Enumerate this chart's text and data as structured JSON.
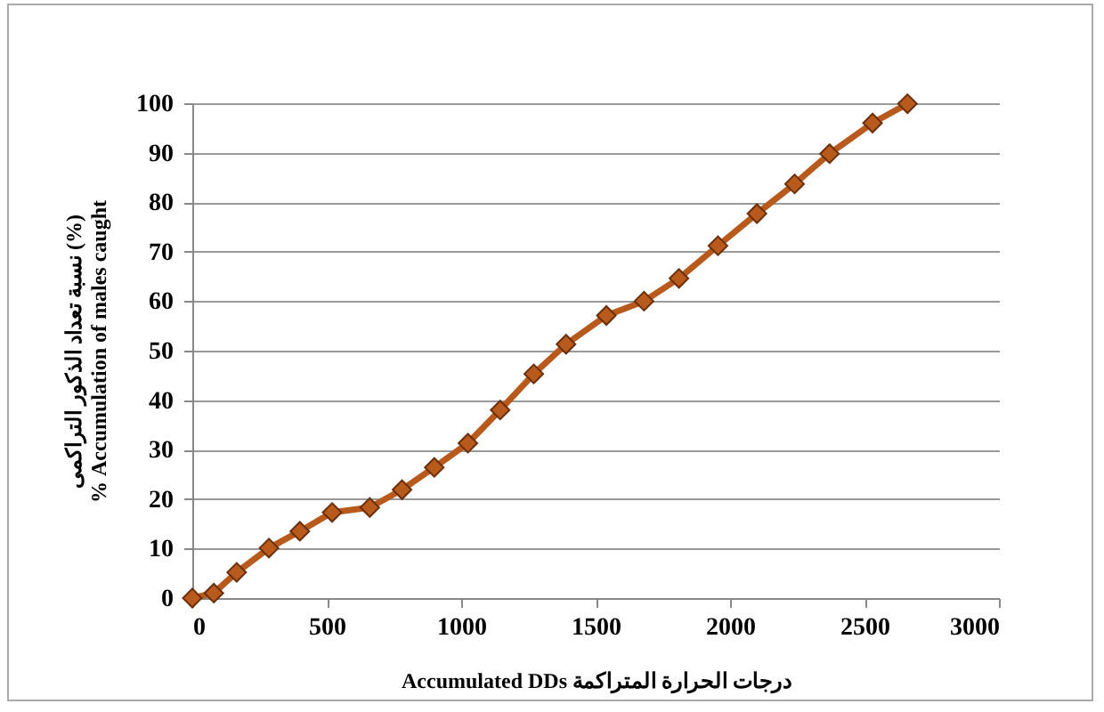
{
  "chart_data": {
    "type": "line",
    "xlabel": "Accumulated  DDs درجات الحرارة المتراكمة",
    "ylabel": "نسبة تعداد الذكور التراكمى (%)\n% Accumulation of males caught",
    "x": [
      0,
      80,
      165,
      285,
      400,
      520,
      660,
      780,
      900,
      1025,
      1145,
      1270,
      1390,
      1540,
      1680,
      1810,
      1955,
      2100,
      2240,
      2370,
      2530,
      2660
    ],
    "series": [
      {
        "color": "#b85a1c",
        "values": [
          0,
          1,
          5.2,
          10.1,
          13.5,
          17.3,
          18.3,
          21.9,
          26.4,
          31.3,
          38,
          45.3,
          51.3,
          57.1,
          60,
          64.6,
          71.2,
          77.7,
          83.7,
          89.8,
          96,
          99.9
        ]
      }
    ],
    "xlim": [
      0,
      3000
    ],
    "xticks": [
      0,
      500,
      1000,
      1500,
      2000,
      2500,
      3000
    ],
    "ylim": [
      0,
      100
    ],
    "yticks": [
      0,
      10,
      20,
      30,
      40,
      50,
      60,
      70,
      80,
      90,
      100
    ],
    "grid": "y",
    "marker": "diamond",
    "line_style": "solid"
  }
}
